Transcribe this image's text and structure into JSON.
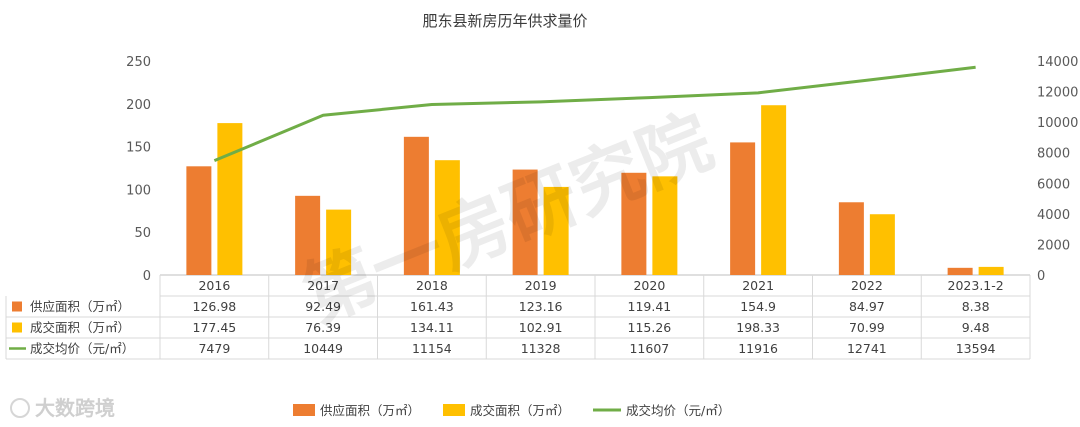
{
  "chart_data": {
    "type": "bar",
    "title": "肥东县新房历年供求量价",
    "categories": [
      "2016",
      "2017",
      "2018",
      "2019",
      "2020",
      "2021",
      "2022",
      "2023.1-2"
    ],
    "series": [
      {
        "name": "供应面积（万㎡）",
        "kind": "bar",
        "axis": "left",
        "color": "#ED7D31",
        "values": [
          126.98,
          92.49,
          161.43,
          123.16,
          119.41,
          154.9,
          84.97,
          8.38
        ]
      },
      {
        "name": "成交面积（万㎡）",
        "kind": "bar",
        "axis": "left",
        "color": "#FFC000",
        "values": [
          177.45,
          76.39,
          134.11,
          102.91,
          115.26,
          198.33,
          70.99,
          9.48
        ]
      },
      {
        "name": "成交均价（元/㎡）",
        "kind": "line",
        "axis": "right",
        "color": "#70AD47",
        "values": [
          7479,
          10449,
          11154,
          11328,
          11607,
          11916,
          12741,
          13594
        ]
      }
    ],
    "left_axis": {
      "min": 0,
      "max": 250,
      "ticks": [
        0,
        50,
        100,
        150,
        200,
        250
      ]
    },
    "right_axis": {
      "min": 0,
      "max": 14000,
      "ticks": [
        0,
        2000,
        4000,
        6000,
        8000,
        10000,
        12000,
        14000
      ]
    },
    "grid": false,
    "data_table": true,
    "legend_position": "bottom"
  },
  "watermark": "第一房研究院",
  "brand": "大数跨境"
}
